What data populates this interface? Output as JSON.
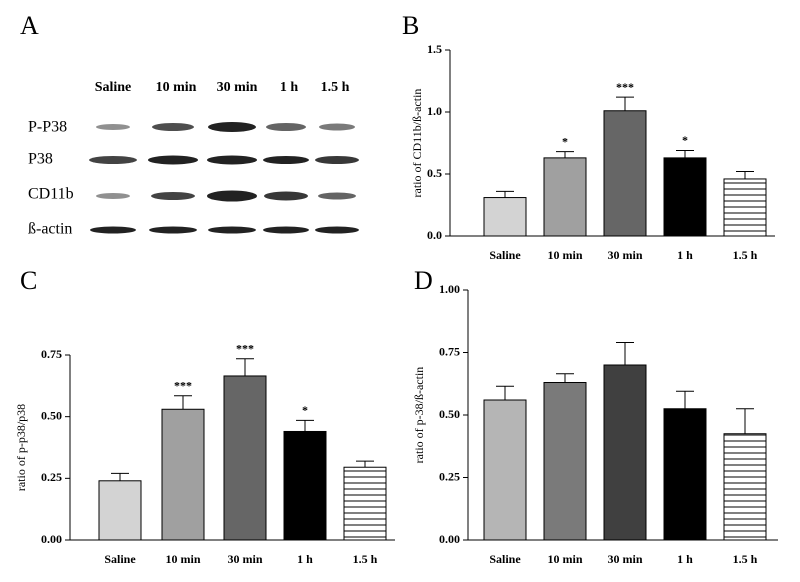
{
  "blot": {
    "panel_label": "A",
    "lanes": [
      "Saline",
      "10 min",
      "30 min",
      "1 h",
      "1.5 h"
    ],
    "rows": [
      "P-P38",
      "P38",
      "CD11b",
      "ß-actin"
    ]
  },
  "chart_data": [
    {
      "type": "bar",
      "panel_label": "B",
      "y_label": "ratio of CD11b/ß-actin",
      "categories": [
        "Saline",
        "10 min",
        "30 min",
        "1 h",
        "1.5 h"
      ],
      "values": [
        0.31,
        0.63,
        1.01,
        0.63,
        0.46
      ],
      "errors": [
        0.05,
        0.05,
        0.11,
        0.06,
        0.06
      ],
      "annotations": [
        null,
        "*",
        "***",
        "*",
        null
      ],
      "colors": [
        "#d3d3d3",
        "#a0a0a0",
        "#666666",
        "#000000",
        "#ffffff"
      ],
      "hatched": [
        false,
        false,
        false,
        false,
        true
      ],
      "ylim": [
        0,
        1.5
      ],
      "yticks": [
        {
          "value": 0,
          "label": "0.0"
        },
        0.5,
        {
          "value": 1,
          "label": "1.0"
        },
        1.5
      ]
    },
    {
      "type": "bar",
      "panel_label": "C",
      "y_label": "ratio of p-p38/p38",
      "categories": [
        "Saline",
        "10 min",
        "30 min",
        "1 h",
        "1.5 h"
      ],
      "values": [
        0.24,
        0.53,
        0.665,
        0.44,
        0.295
      ],
      "errors": [
        0.03,
        0.055,
        0.07,
        0.045,
        0.025
      ],
      "annotations": [
        null,
        "***",
        "***",
        "*",
        null
      ],
      "colors": [
        "#d3d3d3",
        "#a0a0a0",
        "#666666",
        "#000000",
        "#ffffff"
      ],
      "hatched": [
        false,
        false,
        false,
        false,
        true
      ],
      "ylim": [
        0,
        0.75
      ],
      "yticks": [
        {
          "value": 0,
          "label": "0.00"
        },
        0.25,
        {
          "value": 0.5,
          "label": "0.50"
        },
        0.75
      ]
    },
    {
      "type": "bar",
      "panel_label": "D",
      "y_label": "ratio of p-38/ß-actin",
      "categories": [
        "Saline",
        "10 min",
        "30 min",
        "1 h",
        "1.5 h"
      ],
      "values": [
        0.56,
        0.63,
        0.7,
        0.525,
        0.425
      ],
      "errors": [
        0.055,
        0.035,
        0.09,
        0.07,
        0.1
      ],
      "annotations": [
        null,
        null,
        null,
        null,
        null
      ],
      "colors": [
        "#b5b5b5",
        "#7a7a7a",
        "#404040",
        "#000000",
        "#ffffff"
      ],
      "hatched": [
        false,
        false,
        false,
        false,
        true
      ],
      "ylim": [
        0,
        1
      ],
      "yticks": [
        {
          "value": 0,
          "label": "0.00"
        },
        0.25,
        {
          "value": 0.5,
          "label": "0.50"
        },
        0.75,
        {
          "value": 1,
          "label": "1.00"
        }
      ]
    }
  ]
}
